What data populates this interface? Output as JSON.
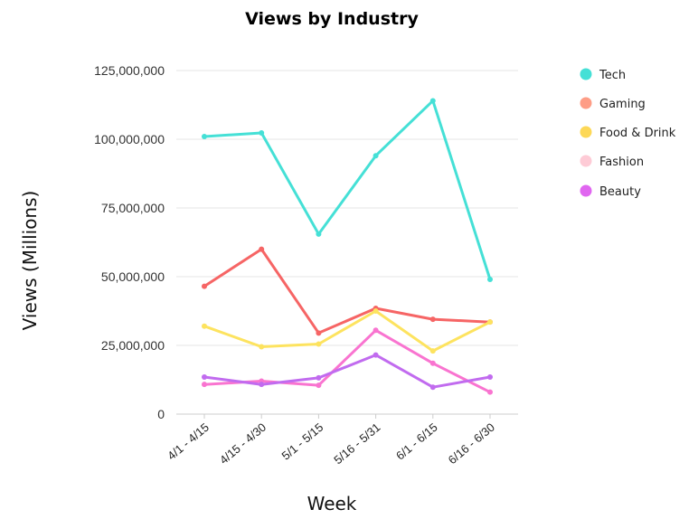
{
  "chart_data": {
    "type": "line",
    "title": "Views by Industry",
    "xlabel": "Week",
    "ylabel": "Views (Millions)",
    "categories": [
      "4/1 - 4/15",
      "4/15 - 4/30",
      "5/1 - 5/15",
      "5/16 - 5/31",
      "6/1 - 6/15",
      "6/16 - 6/30"
    ],
    "ylim": [
      0,
      125000000
    ],
    "yticks": [
      0,
      25000000,
      50000000,
      75000000,
      100000000,
      125000000
    ],
    "ytick_labels": [
      "0",
      "25,000,000",
      "50,000,000",
      "75,000,000",
      "100,000,000",
      "125,000,000"
    ],
    "grid": true,
    "legend_position": "right",
    "series": [
      {
        "name": "Tech",
        "color": "#45e0d6",
        "values": [
          101000000,
          102300000,
          65500000,
          94000000,
          114000000,
          49000000
        ]
      },
      {
        "name": "Gaming",
        "color": "#f66565",
        "values": [
          46500000,
          60000000,
          29500000,
          38500000,
          34500000,
          33500000
        ]
      },
      {
        "name": "Food & Drink",
        "color": "#fde35f",
        "values": [
          32000000,
          24500000,
          25500000,
          37500000,
          23000000,
          33500000
        ]
      },
      {
        "name": "Fashion",
        "color": "#f974d0",
        "values": [
          10800000,
          12000000,
          10500000,
          30500000,
          18500000,
          8000000
        ]
      },
      {
        "name": "Beauty",
        "color": "#c16bef",
        "values": [
          13500000,
          10800000,
          13200000,
          21500000,
          9800000,
          13500000
        ]
      }
    ],
    "legend_colors": [
      "#45e0d6",
      "#fe9d86",
      "#fdd857",
      "#fecbd6",
      "#e066f0"
    ]
  }
}
